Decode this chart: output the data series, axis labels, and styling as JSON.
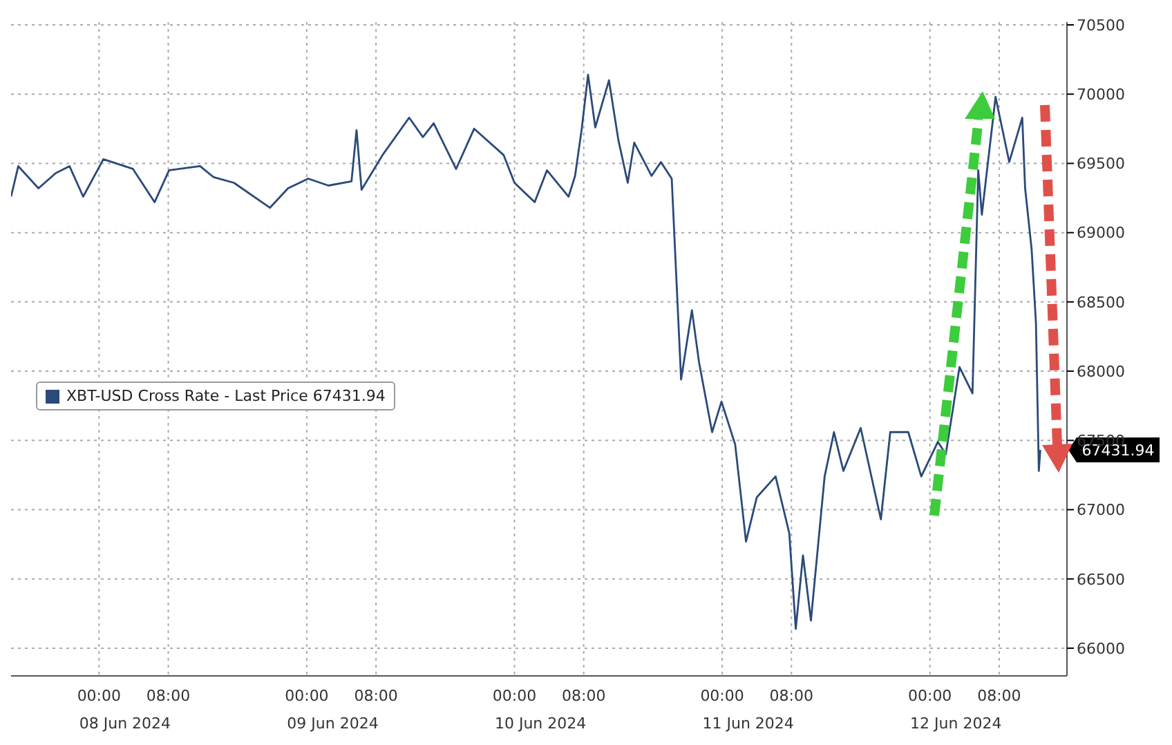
{
  "chart_data": {
    "type": "line",
    "x": [
      "2024-06-07T13:50",
      "2024-06-07T14:40",
      "2024-06-07T17:00",
      "2024-06-07T19:00",
      "2024-06-07T20:35",
      "2024-06-07T22:10",
      "2024-06-08T00:30",
      "2024-06-08T03:55",
      "2024-06-08T06:25",
      "2024-06-08T08:05",
      "2024-06-08T11:40",
      "2024-06-08T13:15",
      "2024-06-08T15:35",
      "2024-06-08T19:45",
      "2024-06-08T21:50",
      "2024-06-09T00:10",
      "2024-06-09T02:30",
      "2024-06-09T05:10",
      "2024-06-09T05:45",
      "2024-06-09T06:20",
      "2024-06-09T08:45",
      "2024-06-09T11:50",
      "2024-06-09T13:25",
      "2024-06-09T14:40",
      "2024-06-09T17:15",
      "2024-06-09T19:20",
      "2024-06-09T22:45",
      "2024-06-10T00:00",
      "2024-06-10T02:20",
      "2024-06-10T03:45",
      "2024-06-10T06:15",
      "2024-06-10T07:00",
      "2024-06-10T07:45",
      "2024-06-10T08:30",
      "2024-06-10T09:20",
      "2024-06-10T10:55",
      "2024-06-10T12:00",
      "2024-06-10T13:05",
      "2024-06-10T13:50",
      "2024-06-10T15:50",
      "2024-06-10T16:55",
      "2024-06-10T18:10",
      "2024-06-10T18:40",
      "2024-06-10T19:15",
      "2024-06-10T20:30",
      "2024-06-10T21:20",
      "2024-06-10T22:50",
      "2024-06-10T23:55",
      "2024-06-11T01:30",
      "2024-06-11T02:45",
      "2024-06-11T04:00",
      "2024-06-11T06:10",
      "2024-06-11T07:45",
      "2024-06-11T08:30",
      "2024-06-11T09:20",
      "2024-06-11T10:15",
      "2024-06-11T11:50",
      "2024-06-11T12:55",
      "2024-06-11T14:00",
      "2024-06-11T16:00",
      "2024-06-11T18:20",
      "2024-06-11T19:25",
      "2024-06-11T21:30",
      "2024-06-11T23:00",
      "2024-06-12T00:55",
      "2024-06-12T01:50",
      "2024-06-12T03:25",
      "2024-06-12T04:55",
      "2024-06-12T05:35",
      "2024-06-12T06:00",
      "2024-06-12T07:35",
      "2024-06-12T09:10",
      "2024-06-12T10:40",
      "2024-06-12T11:00",
      "2024-06-12T11:45",
      "2024-06-12T12:15",
      "2024-06-12T12:35",
      "2024-06-12T12:45"
    ],
    "series": [
      {
        "name": "XBT-USD Cross Rate - Last Price 67431.94",
        "color": "#2b4a7a",
        "values": [
          69260,
          69480,
          69320,
          69430,
          69480,
          69260,
          69530,
          69460,
          69220,
          69450,
          69480,
          69400,
          69360,
          69180,
          69320,
          69390,
          69340,
          69370,
          69740,
          69310,
          69560,
          69830,
          69690,
          69790,
          69460,
          69750,
          69560,
          69360,
          69220,
          69450,
          69260,
          69410,
          69740,
          70140,
          69760,
          70100,
          69670,
          69360,
          69650,
          69410,
          69510,
          69390,
          68720,
          67940,
          68440,
          68060,
          67560,
          67780,
          67470,
          66770,
          67090,
          67240,
          66830,
          66140,
          66670,
          66200,
          67240,
          67560,
          67280,
          67590,
          66930,
          67560,
          67560,
          67240,
          67490,
          67400,
          68030,
          67840,
          69450,
          69130,
          69980,
          69510,
          69830,
          69320,
          68880,
          68350,
          67280,
          67431.94
        ]
      }
    ],
    "xlim": [
      "2024-06-07T13:50",
      "2024-06-12T15:50"
    ],
    "xticks": [
      {
        "value": "2024-06-08T00:00",
        "label": "00:00"
      },
      {
        "value": "2024-06-08T08:00",
        "label": "08:00"
      },
      {
        "value": "2024-06-09T00:00",
        "label": "00:00"
      },
      {
        "value": "2024-06-09T08:00",
        "label": "08:00"
      },
      {
        "value": "2024-06-10T00:00",
        "label": "00:00"
      },
      {
        "value": "2024-06-10T08:00",
        "label": "08:00"
      },
      {
        "value": "2024-06-11T00:00",
        "label": "00:00"
      },
      {
        "value": "2024-06-11T08:00",
        "label": "08:00"
      },
      {
        "value": "2024-06-12T00:00",
        "label": "00:00"
      },
      {
        "value": "2024-06-12T08:00",
        "label": "08:00"
      }
    ],
    "x2lim": [
      "2024-06-07T13:50",
      "2024-06-12T15:50"
    ],
    "x2ticks": [
      {
        "value": "2024-06-08T03:00",
        "label": "08 Jun 2024"
      },
      {
        "value": "2024-06-09T03:00",
        "label": "09 Jun 2024"
      },
      {
        "value": "2024-06-10T03:00",
        "label": "10 Jun 2024"
      },
      {
        "value": "2024-06-11T03:00",
        "label": "11 Jun 2024"
      },
      {
        "value": "2024-06-12T03:00",
        "label": "12 Jun 2024"
      }
    ],
    "ylim": [
      65800,
      70520
    ],
    "yticks": [
      66000,
      66500,
      67000,
      67500,
      68000,
      68500,
      69000,
      69500,
      70000,
      70500
    ],
    "annotations": [
      {
        "text": "67431.94",
        "x": "2024-06-12T12:45",
        "y": 67431.94
      }
    ],
    "grid": true,
    "legend": "left",
    "marker": "none",
    "line_style": "solid"
  }
}
